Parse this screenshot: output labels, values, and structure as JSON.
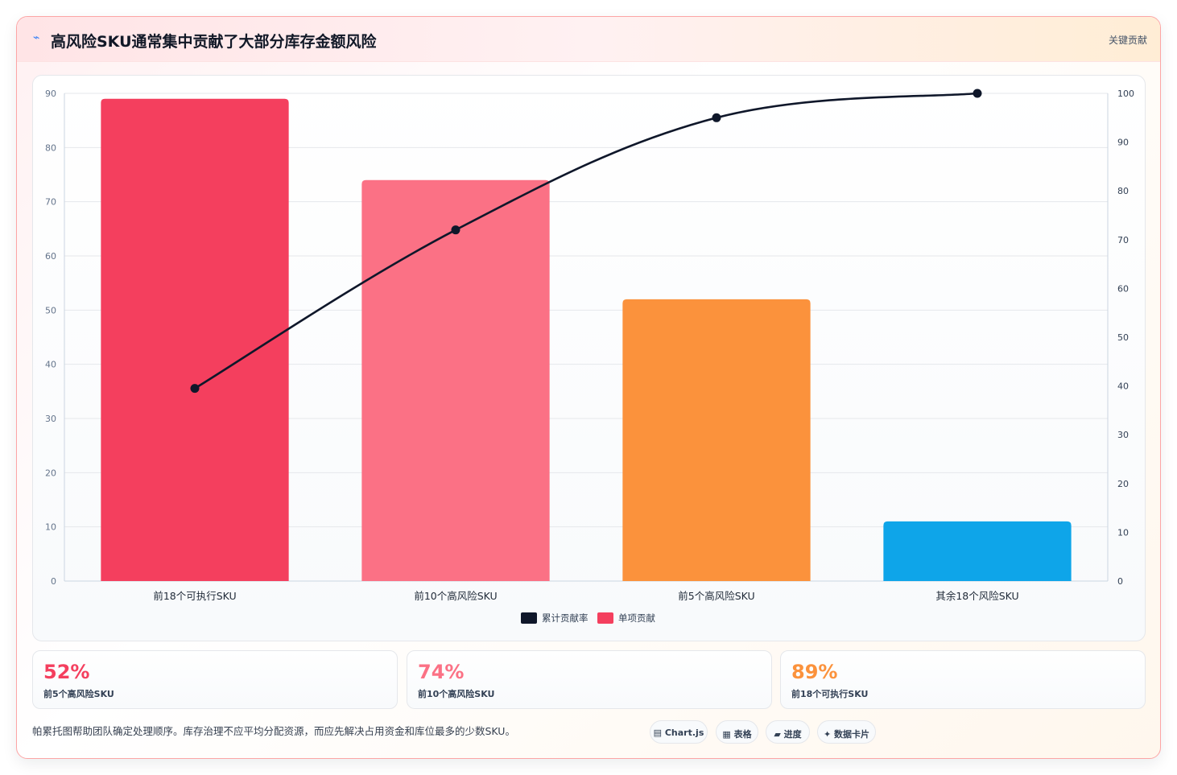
{
  "header": {
    "icon": "lightning-icon",
    "title": "高风险SKU通常集中贡献了大部分库存金额风险",
    "tag": "关键贡献"
  },
  "chart_data": {
    "type": "bar",
    "categories": [
      "前18个可执行SKU",
      "前10个高风险SKU",
      "前5个高风险SKU",
      "其余18个风险SKU"
    ],
    "series": [
      {
        "name": "单项贡献",
        "type": "bar",
        "axis": "left",
        "values": [
          89,
          74,
          52,
          11
        ],
        "colors": [
          "#f43f5e",
          "#fb7185",
          "#fb923c",
          "#0ea5e9"
        ]
      },
      {
        "name": "累计贡献率",
        "type": "line",
        "axis": "right",
        "values": [
          39.5,
          72,
          95,
          100
        ],
        "color": "#0f172a"
      }
    ],
    "left_axis": {
      "ylim": [
        0,
        90
      ],
      "ticks": [
        0,
        10,
        20,
        30,
        40,
        50,
        60,
        70,
        80,
        90
      ]
    },
    "right_axis": {
      "ylim": [
        0,
        100
      ],
      "ticks": [
        0,
        10,
        20,
        30,
        40,
        50,
        60,
        70,
        80,
        90,
        100
      ]
    },
    "legend": {
      "position": "bottom",
      "items": [
        {
          "label": "累计贡献率",
          "color": "#0f172a"
        },
        {
          "label": "单项贡献",
          "color": "#f43f5e"
        }
      ]
    },
    "grid": true
  },
  "stats": [
    {
      "value": "52%",
      "label": "前5个高风险SKU",
      "color": "#f43f5e"
    },
    {
      "value": "74%",
      "label": "前10个高风险SKU",
      "color": "#fb7185"
    },
    {
      "value": "89%",
      "label": "前18个可执行SKU",
      "color": "#fb923c"
    }
  ],
  "footer": {
    "note": "帕累托图帮助团队确定处理顺序。库存治理不应平均分配资源，而应先解决占用资金和库位最多的少数SKU。",
    "pills": [
      {
        "icon": "chart-icon",
        "glyph": "▤",
        "label": "Chart.js"
      },
      {
        "icon": "table-icon",
        "glyph": "▦",
        "label": "表格"
      },
      {
        "icon": "progress-icon",
        "glyph": "▰",
        "label": "进度"
      },
      {
        "icon": "sparkle-icon",
        "glyph": "✦",
        "label": "数据卡片"
      }
    ]
  }
}
